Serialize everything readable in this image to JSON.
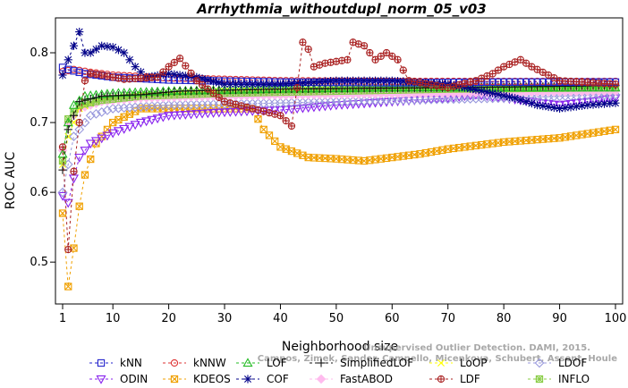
{
  "chart_data": {
    "type": "line",
    "title": "Arrhythmia_withoutdupl_norm_05_v03",
    "xlabel": "Neighborhood size",
    "ylabel": "ROC AUC",
    "xlim": [
      1,
      100
    ],
    "ylim": [
      0.44,
      0.85
    ],
    "x_ticks": [
      1,
      10,
      20,
      30,
      40,
      50,
      60,
      70,
      80,
      90,
      100
    ],
    "y_ticks": [
      0.5,
      0.6,
      0.7,
      0.8
    ],
    "watermark": [
      "Unsupervised Outlier Detection. DAMI, 2015.",
      "Campos, Zimek, Sander, Campello, Micenkova, Schubert, Assent, Houle"
    ],
    "legend_position": "bottom",
    "series": [
      {
        "name": "kNN",
        "color": "#2222cc",
        "marker": "square",
        "points": [
          [
            1,
            0.779
          ],
          [
            2,
            0.776
          ],
          [
            5,
            0.77
          ],
          [
            10,
            0.765
          ],
          [
            20,
            0.761
          ],
          [
            40,
            0.758
          ],
          [
            60,
            0.757
          ],
          [
            80,
            0.758
          ],
          [
            100,
            0.758
          ]
        ]
      },
      {
        "name": "kNNW",
        "color": "#dd3333",
        "marker": "circle",
        "points": [
          [
            1,
            0.773
          ],
          [
            3,
            0.776
          ],
          [
            6,
            0.772
          ],
          [
            10,
            0.768
          ],
          [
            20,
            0.764
          ],
          [
            40,
            0.76
          ],
          [
            60,
            0.759
          ],
          [
            80,
            0.759
          ],
          [
            100,
            0.759
          ]
        ]
      },
      {
        "name": "LOF",
        "color": "#22bb22",
        "marker": "triangle-up",
        "points": [
          [
            1,
            0.655
          ],
          [
            2,
            0.7
          ],
          [
            3,
            0.725
          ],
          [
            5,
            0.738
          ],
          [
            10,
            0.742
          ],
          [
            20,
            0.745
          ],
          [
            40,
            0.748
          ],
          [
            60,
            0.75
          ],
          [
            80,
            0.75
          ],
          [
            100,
            0.75
          ]
        ]
      },
      {
        "name": "SimplifiedLOF",
        "color": "#111111",
        "marker": "plus",
        "points": [
          [
            1,
            0.632
          ],
          [
            2,
            0.69
          ],
          [
            4,
            0.73
          ],
          [
            8,
            0.738
          ],
          [
            15,
            0.74
          ],
          [
            22,
            0.745
          ],
          [
            40,
            0.748
          ],
          [
            70,
            0.75
          ],
          [
            100,
            0.753
          ]
        ]
      },
      {
        "name": "LoOP",
        "color": "#ffff00",
        "marker": "x",
        "points": [
          [
            1,
            0.64
          ],
          [
            2,
            0.68
          ],
          [
            4,
            0.72
          ],
          [
            8,
            0.735
          ],
          [
            15,
            0.74
          ],
          [
            30,
            0.745
          ],
          [
            60,
            0.748
          ],
          [
            100,
            0.75
          ]
        ]
      },
      {
        "name": "LDOF",
        "color": "#9999dd",
        "marker": "diamond",
        "points": [
          [
            1,
            0.6
          ],
          [
            3,
            0.68
          ],
          [
            6,
            0.71
          ],
          [
            10,
            0.72
          ],
          [
            20,
            0.725
          ],
          [
            40,
            0.728
          ],
          [
            60,
            0.732
          ],
          [
            80,
            0.735
          ],
          [
            100,
            0.74
          ]
        ]
      },
      {
        "name": "ODIN",
        "color": "#8822ee",
        "marker": "triangle-down",
        "points": [
          [
            1,
            0.595
          ],
          [
            2,
            0.585
          ],
          [
            3,
            0.62
          ],
          [
            4,
            0.65
          ],
          [
            6,
            0.67
          ],
          [
            10,
            0.685
          ],
          [
            15,
            0.7
          ],
          [
            20,
            0.71
          ],
          [
            30,
            0.715
          ],
          [
            40,
            0.718
          ],
          [
            50,
            0.725
          ],
          [
            60,
            0.73
          ],
          [
            70,
            0.735
          ],
          [
            75,
            0.74
          ],
          [
            80,
            0.735
          ],
          [
            85,
            0.73
          ],
          [
            90,
            0.725
          ],
          [
            95,
            0.73
          ],
          [
            100,
            0.735
          ]
        ]
      },
      {
        "name": "KDEOS",
        "color": "#f0a000",
        "marker": "square-x",
        "points": [
          [
            1,
            0.57
          ],
          [
            2,
            0.465
          ],
          [
            3,
            0.52
          ],
          [
            4,
            0.58
          ],
          [
            5,
            0.625
          ],
          [
            7,
            0.67
          ],
          [
            10,
            0.7
          ],
          [
            15,
            0.72
          ],
          [
            25,
            0.72
          ],
          [
            35,
            0.72
          ],
          [
            37,
            0.69
          ],
          [
            40,
            0.665
          ],
          [
            45,
            0.65
          ],
          [
            50,
            0.648
          ],
          [
            55,
            0.645
          ],
          [
            60,
            0.65
          ],
          [
            65,
            0.655
          ],
          [
            70,
            0.662
          ],
          [
            80,
            0.672
          ],
          [
            90,
            0.678
          ],
          [
            100,
            0.69
          ]
        ]
      },
      {
        "name": "COF",
        "color": "#000088",
        "marker": "asterisk",
        "points": [
          [
            1,
            0.768
          ],
          [
            2,
            0.79
          ],
          [
            3,
            0.81
          ],
          [
            4,
            0.83
          ],
          [
            5,
            0.8
          ],
          [
            6,
            0.8
          ],
          [
            8,
            0.81
          ],
          [
            10,
            0.808
          ],
          [
            12,
            0.8
          ],
          [
            14,
            0.78
          ],
          [
            16,
            0.765
          ],
          [
            20,
            0.77
          ],
          [
            25,
            0.765
          ],
          [
            30,
            0.755
          ],
          [
            40,
            0.755
          ],
          [
            50,
            0.76
          ],
          [
            60,
            0.76
          ],
          [
            70,
            0.755
          ],
          [
            78,
            0.742
          ],
          [
            82,
            0.735
          ],
          [
            86,
            0.725
          ],
          [
            90,
            0.72
          ],
          [
            95,
            0.725
          ],
          [
            100,
            0.728
          ]
        ]
      },
      {
        "name": "FastABOD",
        "color": "#ffbbee",
        "marker": "diamond-filled",
        "points": [
          [
            1,
            0.66
          ],
          [
            2,
            0.7
          ],
          [
            4,
            0.72
          ],
          [
            8,
            0.73
          ],
          [
            15,
            0.735
          ],
          [
            30,
            0.738
          ],
          [
            50,
            0.74
          ],
          [
            70,
            0.742
          ],
          [
            100,
            0.745
          ]
        ]
      },
      {
        "name": "LDF",
        "color": "#aa2222",
        "marker": "circle-plus",
        "points": [
          [
            1,
            0.665
          ],
          [
            2,
            0.518
          ],
          [
            3,
            0.63
          ],
          [
            4,
            0.7
          ],
          [
            5,
            0.76
          ],
          [
            6,
            0.77
          ],
          [
            8,
            0.768
          ],
          [
            12,
            0.762
          ],
          [
            18,
            0.765
          ],
          [
            20,
            0.78
          ],
          [
            22,
            0.792
          ],
          [
            25,
            0.76
          ],
          [
            30,
            0.73
          ],
          [
            35,
            0.72
          ],
          [
            40,
            0.71
          ],
          [
            42,
            0.695
          ],
          [
            43,
            0.75
          ],
          [
            44,
            0.815
          ],
          [
            45,
            0.805
          ],
          [
            46,
            0.78
          ],
          [
            48,
            0.785
          ],
          [
            52,
            0.79
          ],
          [
            53,
            0.815
          ],
          [
            55,
            0.81
          ],
          [
            57,
            0.79
          ],
          [
            59,
            0.8
          ],
          [
            61,
            0.79
          ],
          [
            63,
            0.76
          ],
          [
            70,
            0.75
          ],
          [
            75,
            0.76
          ],
          [
            78,
            0.77
          ],
          [
            80,
            0.78
          ],
          [
            83,
            0.79
          ],
          [
            85,
            0.78
          ],
          [
            90,
            0.76
          ],
          [
            100,
            0.755
          ]
        ]
      },
      {
        "name": "INFLO",
        "color": "#88cc44",
        "marker": "square-star",
        "points": [
          [
            1,
            0.645
          ],
          [
            2,
            0.705
          ],
          [
            4,
            0.725
          ],
          [
            8,
            0.732
          ],
          [
            15,
            0.738
          ],
          [
            30,
            0.742
          ],
          [
            50,
            0.745
          ],
          [
            70,
            0.748
          ],
          [
            100,
            0.75
          ]
        ]
      }
    ]
  }
}
